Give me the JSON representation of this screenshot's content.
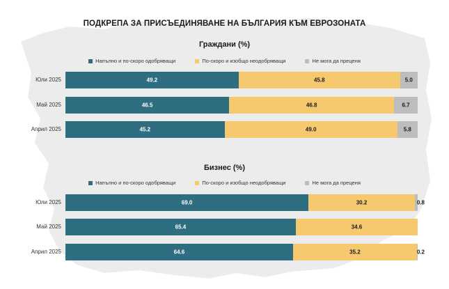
{
  "title": "ПОДКРЕПА ЗА ПРИСЪЕДИНЯВАНЕ НА БЪЛГАРИЯ КЪМ ЕВРОЗОНАТА",
  "colors": {
    "approve": "#2e6e80",
    "disapprove": "#f6c96e",
    "undecided": "#bdbdbd",
    "map": "#ececec"
  },
  "chart_data": [
    {
      "type": "bar",
      "orientation": "horizontal",
      "stacked": true,
      "subtitle": "Граждани (%)",
      "categories": [
        "Юли 2025",
        "Май 2025",
        "Април 2025"
      ],
      "series": [
        {
          "name": "Напълно и по-скоро одобряващи",
          "values": [
            49.2,
            46.5,
            45.2
          ]
        },
        {
          "name": "По-скоро и изобщо неодобряващи",
          "values": [
            45.8,
            46.8,
            49.0
          ]
        },
        {
          "name": "Не мога да преценя",
          "values": [
            5.0,
            6.7,
            5.8
          ]
        }
      ],
      "labels": [
        [
          "49.2",
          "45.8",
          "5.0"
        ],
        [
          "46.5",
          "46.8",
          "6.7"
        ],
        [
          "45.2",
          "49.0",
          "5.8"
        ]
      ],
      "legend": "top"
    },
    {
      "type": "bar",
      "orientation": "horizontal",
      "stacked": true,
      "subtitle": "Бизнес (%)",
      "categories": [
        "Юли 2025",
        "Май 2025",
        "Април 2025"
      ],
      "series": [
        {
          "name": "Напълно и по-скоро одобряващи",
          "values": [
            69.0,
            65.4,
            64.6
          ]
        },
        {
          "name": "По-скоро и изобщо неодобряващи",
          "values": [
            30.2,
            34.6,
            35.2
          ]
        },
        {
          "name": "Не мога да преценя",
          "values": [
            0.8,
            0.0,
            0.2
          ]
        }
      ],
      "labels": [
        [
          "69.0",
          "30.2",
          "0.8"
        ],
        [
          "65.4",
          "34.6",
          ""
        ],
        [
          "64.6",
          "35.2",
          "0.2"
        ]
      ],
      "legend": "top"
    }
  ]
}
